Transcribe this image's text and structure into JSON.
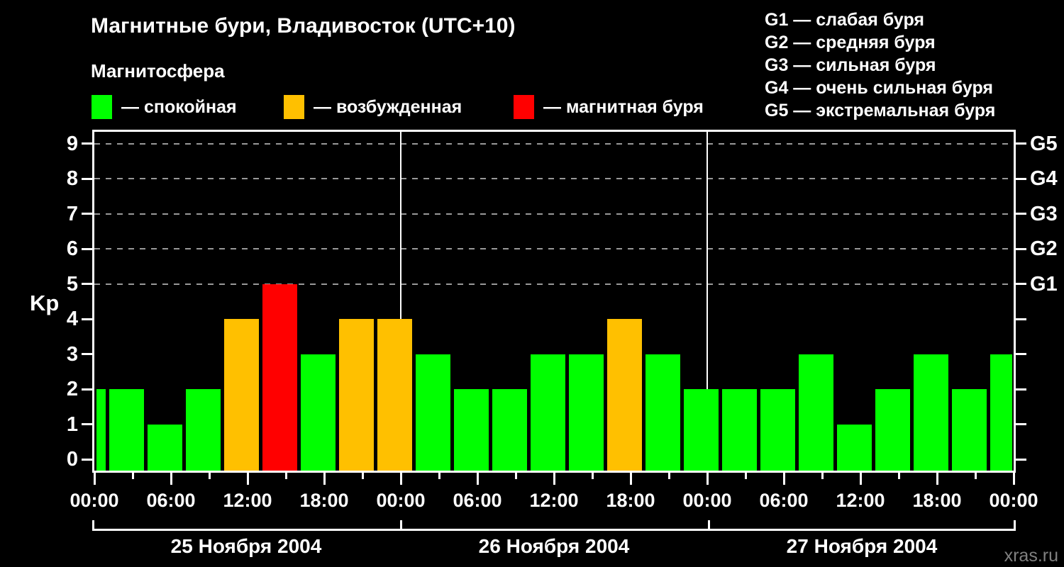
{
  "header": {
    "title": "Магнитные бури, Владивосток (UTC+10)",
    "subtitle": "Магнитосфера",
    "legend": [
      {
        "key": "quiet",
        "label": "— спокойная"
      },
      {
        "key": "excited",
        "label": "— возбужденная"
      },
      {
        "key": "storm",
        "label": "— магнитная буря"
      }
    ],
    "storm_scale": [
      "G1 — слабая буря",
      "G2 — средняя буря",
      "G3 — сильная буря",
      "G4 — очень сильная буря",
      "G5 — экстремальная буря"
    ]
  },
  "watermark": "xras.ru",
  "chart_data": {
    "type": "bar",
    "title": "Магнитные бури, Владивосток (UTC+10)",
    "ylabel": "Kp",
    "ylim": [
      0,
      9
    ],
    "grid": "dashed horizontal lines at Kp 5-9 only",
    "y_ticks": [
      0,
      1,
      2,
      3,
      4,
      5,
      6,
      7,
      8,
      9
    ],
    "right_axis": [
      {
        "label": "G1",
        "value": 5
      },
      {
        "label": "G2",
        "value": 6
      },
      {
        "label": "G3",
        "value": 7
      },
      {
        "label": "G4",
        "value": 8
      },
      {
        "label": "G5",
        "value": 9
      }
    ],
    "total_hours": 72,
    "bar_interval_hours": 3,
    "x_tick_step_hours": 3,
    "x_label_step_hours": 6,
    "x_tick_labels": [
      "00:00",
      "06:00",
      "12:00",
      "18:00",
      "00:00",
      "06:00",
      "12:00",
      "18:00",
      "00:00",
      "06:00",
      "12:00",
      "18:00",
      "00:00"
    ],
    "days": [
      {
        "label": "25 Ноября 2004",
        "start_hour": 0,
        "end_hour": 24
      },
      {
        "label": "26 Ноября 2004",
        "start_hour": 24,
        "end_hour": 48
      },
      {
        "label": "27 Ноября 2004",
        "start_hour": 48,
        "end_hour": 72
      }
    ],
    "bars": [
      {
        "start_hour": -2,
        "kp": 2,
        "status": "quiet"
      },
      {
        "start_hour": 1,
        "kp": 2,
        "status": "quiet"
      },
      {
        "start_hour": 4,
        "kp": 1,
        "status": "quiet"
      },
      {
        "start_hour": 7,
        "kp": 2,
        "status": "quiet"
      },
      {
        "start_hour": 10,
        "kp": 4,
        "status": "excited"
      },
      {
        "start_hour": 13,
        "kp": 5,
        "status": "storm"
      },
      {
        "start_hour": 16,
        "kp": 3,
        "status": "quiet"
      },
      {
        "start_hour": 19,
        "kp": 4,
        "status": "excited"
      },
      {
        "start_hour": 22,
        "kp": 4,
        "status": "excited"
      },
      {
        "start_hour": 25,
        "kp": 3,
        "status": "quiet"
      },
      {
        "start_hour": 28,
        "kp": 2,
        "status": "quiet"
      },
      {
        "start_hour": 31,
        "kp": 2,
        "status": "quiet"
      },
      {
        "start_hour": 34,
        "kp": 3,
        "status": "quiet"
      },
      {
        "start_hour": 37,
        "kp": 3,
        "status": "quiet"
      },
      {
        "start_hour": 40,
        "kp": 4,
        "status": "excited"
      },
      {
        "start_hour": 43,
        "kp": 3,
        "status": "quiet"
      },
      {
        "start_hour": 46,
        "kp": 2,
        "status": "quiet"
      },
      {
        "start_hour": 49,
        "kp": 2,
        "status": "quiet"
      },
      {
        "start_hour": 52,
        "kp": 2,
        "status": "quiet"
      },
      {
        "start_hour": 55,
        "kp": 3,
        "status": "quiet"
      },
      {
        "start_hour": 58,
        "kp": 1,
        "status": "quiet"
      },
      {
        "start_hour": 61,
        "kp": 2,
        "status": "quiet"
      },
      {
        "start_hour": 64,
        "kp": 3,
        "status": "quiet"
      },
      {
        "start_hour": 67,
        "kp": 2,
        "status": "quiet"
      },
      {
        "start_hour": 70,
        "kp": 3,
        "status": "quiet"
      }
    ],
    "colors": {
      "quiet": "#00ff00",
      "excited": "#ffc000",
      "storm": "#ff0000",
      "grid": "#999999",
      "axis": "#ffffff",
      "background": "#000000",
      "watermark": "#808080"
    }
  }
}
